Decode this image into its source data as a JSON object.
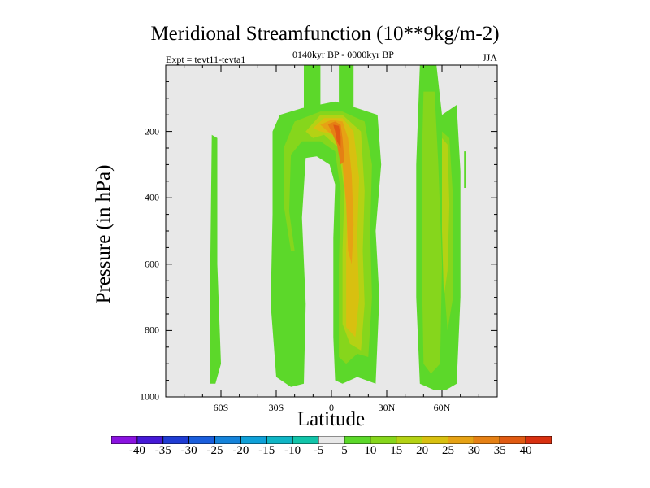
{
  "chart_data": {
    "type": "heatmap",
    "title": "Meridional Streamfunction (10**9kg/m-2)",
    "expt_label": "Expt = tevt11-tevta1",
    "subtitle": "0140kyr BP - 0000kyr BP",
    "season": "JJA",
    "xlabel": "Latitude",
    "ylabel": "Pressure (in hPa)",
    "xlim": [
      -90,
      90
    ],
    "ylim": [
      1000,
      0
    ],
    "x_ticks": [
      {
        "value": -60,
        "label": "60S"
      },
      {
        "value": -30,
        "label": "30S"
      },
      {
        "value": 0,
        "label": "0"
      },
      {
        "value": 30,
        "label": "30N"
      },
      {
        "value": 60,
        "label": "60N"
      }
    ],
    "y_ticks": [
      {
        "value": 200,
        "label": "200"
      },
      {
        "value": 400,
        "label": "400"
      },
      {
        "value": 600,
        "label": "600"
      },
      {
        "value": 800,
        "label": "800"
      },
      {
        "value": 1000,
        "label": "1000"
      }
    ],
    "background_color": "#e8e8e8",
    "contour_levels": [
      -40,
      -35,
      -30,
      -25,
      -20,
      -15,
      -10,
      -5,
      5,
      10,
      15,
      20,
      25,
      30,
      35,
      40
    ],
    "colorbar_colors": [
      "#8a13e0",
      "#4519d6",
      "#1f3cd3",
      "#1a5edc",
      "#1583da",
      "#0fa0d8",
      "#10b5c5",
      "#12c4a9",
      "#e8e8e8",
      "#5cd82a",
      "#86d61c",
      "#b4d214",
      "#d8c010",
      "#e6a214",
      "#e58014",
      "#e05a12",
      "#d83010"
    ],
    "regions": [
      {
        "name": "neg-tongue-far-sh-1",
        "level": -5,
        "points": [
          [
            -83,
            0
          ],
          [
            -80,
            0
          ],
          [
            -79,
            300
          ],
          [
            -78,
            600
          ],
          [
            -80,
            840
          ],
          [
            -81,
            960
          ],
          [
            -82,
            840
          ],
          [
            -83,
            600
          ],
          [
            -83,
            300
          ]
        ]
      },
      {
        "name": "neg-tongue-far-sh-2",
        "level": -5,
        "points": [
          [
            -77,
            0
          ],
          [
            -74,
            0
          ],
          [
            -74,
            400
          ],
          [
            -75,
            700
          ],
          [
            -75,
            860
          ],
          [
            -77,
            900
          ],
          [
            -77,
            600
          ]
        ]
      },
      {
        "name": "neg-tongue-mid-sh",
        "level": -5,
        "points": [
          [
            -50,
            0
          ],
          [
            -48,
            0
          ],
          [
            -47,
            150
          ],
          [
            -42,
            260
          ],
          [
            -36,
            400
          ],
          [
            -38,
            700
          ],
          [
            -38,
            920
          ],
          [
            -43,
            950
          ],
          [
            -48,
            940
          ],
          [
            -49,
            880
          ],
          [
            -45,
            700
          ],
          [
            -45,
            420
          ],
          [
            -49,
            250
          ],
          [
            -51,
            150
          ]
        ]
      },
      {
        "name": "neg-core-tropics",
        "level": -5,
        "points": [
          [
            -7,
            320
          ],
          [
            -4,
            310
          ],
          [
            0,
            330
          ],
          [
            0,
            520
          ],
          [
            -2,
            700
          ],
          [
            -3,
            920
          ],
          [
            -5,
            950
          ],
          [
            -6,
            800
          ],
          [
            -7,
            600
          ],
          [
            -8,
            420
          ]
        ]
      },
      {
        "name": "pos-right-sliver",
        "level": 5,
        "points": [
          [
            72,
            260
          ],
          [
            73,
            260
          ],
          [
            73,
            370
          ],
          [
            72,
            370
          ]
        ]
      },
      {
        "name": "pos-tropical-arch",
        "level": 5,
        "points": [
          [
            -32,
            200
          ],
          [
            -28,
            150
          ],
          [
            -16,
            130
          ],
          [
            2,
            110
          ],
          [
            14,
            130
          ],
          [
            25,
            150
          ],
          [
            27,
            300
          ],
          [
            24,
            500
          ],
          [
            26,
            700
          ],
          [
            24,
            960
          ],
          [
            14,
            940
          ],
          [
            6,
            960
          ],
          [
            2,
            950
          ],
          [
            1,
            820
          ],
          [
            1,
            520
          ],
          [
            2,
            360
          ],
          [
            -1,
            300
          ],
          [
            -8,
            275
          ],
          [
            -14,
            280
          ],
          [
            -16,
            460
          ],
          [
            -14,
            720
          ],
          [
            -15,
            960
          ],
          [
            -22,
            970
          ],
          [
            -30,
            940
          ],
          [
            -33,
            720
          ],
          [
            -32,
            450
          ]
        ]
      },
      {
        "name": "pos-sh-midlat",
        "level": 5,
        "points": [
          [
            -65,
            210
          ],
          [
            -62,
            220
          ],
          [
            -62,
            600
          ],
          [
            -60,
            900
          ],
          [
            -63,
            960
          ],
          [
            -66,
            960
          ],
          [
            -66,
            700
          ]
        ]
      },
      {
        "name": "pos-nh-midlat",
        "level": 5,
        "points": [
          [
            48,
            0
          ],
          [
            57,
            0
          ],
          [
            60,
            150
          ],
          [
            68,
            120
          ],
          [
            70,
            320
          ],
          [
            70,
            700
          ],
          [
            68,
            960
          ],
          [
            62,
            980
          ],
          [
            56,
            980
          ],
          [
            48,
            960
          ],
          [
            46,
            700
          ],
          [
            46,
            300
          ]
        ]
      },
      {
        "name": "pos-top-band-1",
        "level": 5,
        "points": [
          [
            -15,
            0
          ],
          [
            -6,
            0
          ],
          [
            -6,
            150
          ],
          [
            -15,
            150
          ]
        ]
      },
      {
        "name": "pos-top-band-2",
        "level": 5,
        "points": [
          [
            4,
            0
          ],
          [
            12,
            0
          ],
          [
            12,
            150
          ],
          [
            4,
            150
          ]
        ]
      },
      {
        "name": "pos-nh-10",
        "level": 10,
        "points": [
          [
            50,
            80
          ],
          [
            56,
            80
          ],
          [
            58,
            300
          ],
          [
            60,
            600
          ],
          [
            59,
            900
          ],
          [
            54,
            930
          ],
          [
            50,
            900
          ],
          [
            49,
            600
          ],
          [
            49,
            300
          ]
        ]
      },
      {
        "name": "pos-nh-10b",
        "level": 10,
        "points": [
          [
            60,
            200
          ],
          [
            64,
            220
          ],
          [
            66,
            400
          ],
          [
            66,
            700
          ],
          [
            63,
            800
          ],
          [
            61,
            650
          ]
        ]
      },
      {
        "name": "pos-trop-10",
        "level": 10,
        "points": [
          [
            -26,
            250
          ],
          [
            -20,
            170
          ],
          [
            -6,
            140
          ],
          [
            6,
            140
          ],
          [
            18,
            170
          ],
          [
            22,
            300
          ],
          [
            21,
            500
          ],
          [
            22,
            700
          ],
          [
            20,
            880
          ],
          [
            14,
            870
          ],
          [
            8,
            900
          ],
          [
            4,
            880
          ],
          [
            4,
            600
          ],
          [
            5,
            380
          ],
          [
            2,
            260
          ],
          [
            -6,
            230
          ],
          [
            -16,
            230
          ],
          [
            -22,
            270
          ],
          [
            -23,
            440
          ],
          [
            -20,
            560
          ],
          [
            -22,
            560
          ],
          [
            -26,
            420
          ]
        ]
      },
      {
        "name": "pos-nh-15",
        "level": 15,
        "points": [
          [
            60,
            220
          ],
          [
            63,
            240
          ],
          [
            64,
            420
          ],
          [
            63,
            620
          ],
          [
            61,
            700
          ],
          [
            60,
            500
          ]
        ]
      },
      {
        "name": "pos-trop-15",
        "level": 15,
        "points": [
          [
            -14,
            200
          ],
          [
            -6,
            150
          ],
          [
            6,
            150
          ],
          [
            16,
            200
          ],
          [
            18,
            380
          ],
          [
            17,
            560
          ],
          [
            18,
            720
          ],
          [
            16,
            860
          ],
          [
            10,
            840
          ],
          [
            6,
            780
          ],
          [
            6,
            560
          ],
          [
            7,
            380
          ],
          [
            4,
            250
          ],
          [
            -4,
            210
          ],
          [
            -10,
            220
          ]
        ]
      },
      {
        "name": "pos-trop-20",
        "level": 20,
        "points": [
          [
            -10,
            190
          ],
          [
            -4,
            160
          ],
          [
            6,
            160
          ],
          [
            12,
            200
          ],
          [
            15,
            340
          ],
          [
            14,
            520
          ],
          [
            15,
            700
          ],
          [
            13,
            820
          ],
          [
            8,
            790
          ],
          [
            8,
            560
          ],
          [
            9,
            380
          ],
          [
            6,
            250
          ],
          [
            2,
            210
          ],
          [
            -6,
            200
          ]
        ]
      },
      {
        "name": "pos-trop-25",
        "level": 25,
        "points": [
          [
            -6,
            180
          ],
          [
            0,
            165
          ],
          [
            6,
            170
          ],
          [
            9,
            220
          ],
          [
            11,
            330
          ],
          [
            12,
            480
          ],
          [
            11,
            600
          ],
          [
            9,
            560
          ],
          [
            8,
            420
          ],
          [
            6,
            300
          ],
          [
            3,
            220
          ],
          [
            -2,
            200
          ]
        ]
      },
      {
        "name": "pos-trop-30",
        "level": 30,
        "points": [
          [
            -2,
            178
          ],
          [
            2,
            170
          ],
          [
            5,
            180
          ],
          [
            6,
            220
          ],
          [
            7,
            290
          ],
          [
            5,
            300
          ],
          [
            3,
            240
          ],
          [
            0,
            200
          ]
        ]
      },
      {
        "name": "pos-trop-35",
        "level": 35,
        "points": [
          [
            1,
            180
          ],
          [
            4,
            183
          ],
          [
            5,
            215
          ],
          [
            5,
            250
          ],
          [
            3,
            230
          ],
          [
            2,
            200
          ]
        ]
      }
    ]
  }
}
